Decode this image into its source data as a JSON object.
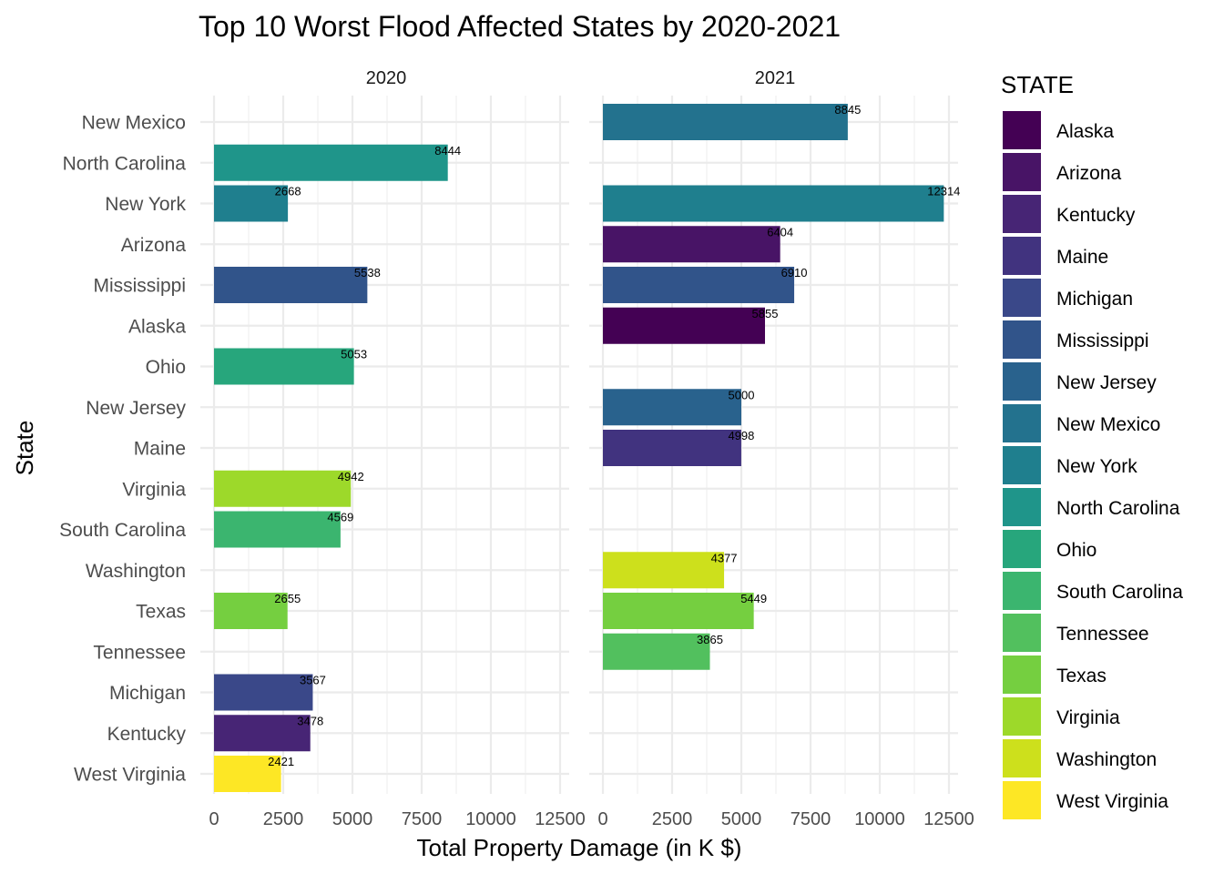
{
  "chart_data": {
    "type": "bar",
    "orientation": "horizontal",
    "title": "Top 10 Worst Flood Affected States by 2020-2021",
    "xlabel": "Total Property Damage (in K $)",
    "ylabel": "State",
    "xlim": [
      0,
      12800
    ],
    "x_ticks": [
      0,
      2500,
      5000,
      7500,
      10000,
      12500
    ],
    "x_tick_labels": [
      "0",
      "2500",
      "5000",
      "7500",
      "10000",
      "12500"
    ],
    "grid": true,
    "legend_position": "right",
    "legend_title": "STATE",
    "categories": [
      "New Mexico",
      "North Carolina",
      "New York",
      "Arizona",
      "Mississippi",
      "Alaska",
      "Ohio",
      "New Jersey",
      "Maine",
      "Virginia",
      "South Carolina",
      "Washington",
      "Texas",
      "Tennessee",
      "Michigan",
      "Kentucky",
      "West Virginia"
    ],
    "panels": [
      {
        "label": "2020",
        "bars": [
          {
            "state": "North Carolina",
            "value": 8444
          },
          {
            "state": "New York",
            "value": 2668
          },
          {
            "state": "Mississippi",
            "value": 5538
          },
          {
            "state": "Ohio",
            "value": 5053
          },
          {
            "state": "Virginia",
            "value": 4942
          },
          {
            "state": "South Carolina",
            "value": 4569
          },
          {
            "state": "Texas",
            "value": 2655
          },
          {
            "state": "Michigan",
            "value": 3567
          },
          {
            "state": "Kentucky",
            "value": 3478
          },
          {
            "state": "West Virginia",
            "value": 2421
          }
        ]
      },
      {
        "label": "2021",
        "bars": [
          {
            "state": "New Mexico",
            "value": 8845
          },
          {
            "state": "New York",
            "value": 12314
          },
          {
            "state": "Arizona",
            "value": 6404
          },
          {
            "state": "Mississippi",
            "value": 6910
          },
          {
            "state": "Alaska",
            "value": 5855
          },
          {
            "state": "New Jersey",
            "value": 5000
          },
          {
            "state": "Maine",
            "value": 4998
          },
          {
            "state": "Washington",
            "value": 4377
          },
          {
            "state": "Texas",
            "value": 5449
          },
          {
            "state": "Tennessee",
            "value": 3865
          }
        ]
      }
    ],
    "legend": [
      {
        "name": "Alaska",
        "color": "#440154"
      },
      {
        "name": "Arizona",
        "color": "#481466"
      },
      {
        "name": "Kentucky",
        "color": "#472575"
      },
      {
        "name": "Maine",
        "color": "#41337f"
      },
      {
        "name": "Michigan",
        "color": "#3a4889"
      },
      {
        "name": "Mississippi",
        "color": "#31548a"
      },
      {
        "name": "New Jersey",
        "color": "#29628d"
      },
      {
        "name": "New Mexico",
        "color": "#23728e"
      },
      {
        "name": "New York",
        "color": "#1f7f8e"
      },
      {
        "name": "North Carolina",
        "color": "#1f958a"
      },
      {
        "name": "Ohio",
        "color": "#27a67c"
      },
      {
        "name": "South Carolina",
        "color": "#3bb56f"
      },
      {
        "name": "Tennessee",
        "color": "#52c05e"
      },
      {
        "name": "Texas",
        "color": "#75cf40"
      },
      {
        "name": "Virginia",
        "color": "#9dd92a"
      },
      {
        "name": "Washington",
        "color": "#cde01c"
      },
      {
        "name": "West Virginia",
        "color": "#fde725"
      }
    ]
  }
}
